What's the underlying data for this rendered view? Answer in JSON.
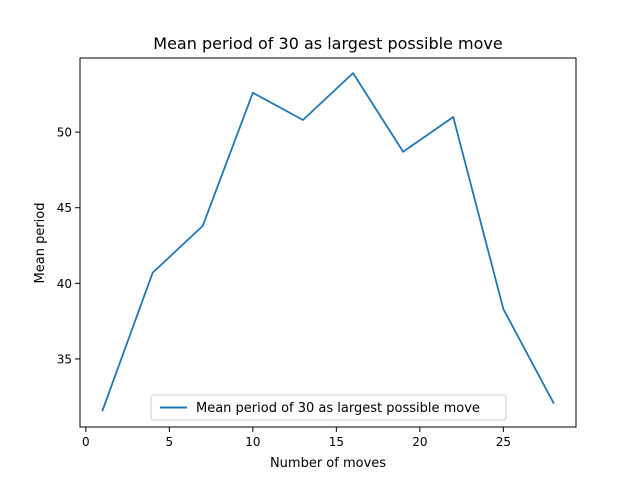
{
  "chart_data": {
    "type": "line",
    "title": "Mean period of 30 as largest possible move",
    "xlabel": "Number of moves",
    "ylabel": "Mean period",
    "xlim": [
      -0.35,
      29.35
    ],
    "ylim": [
      30.5,
      54.9
    ],
    "xticks": [
      0,
      5,
      10,
      15,
      20,
      25
    ],
    "yticks": [
      35,
      40,
      45,
      50
    ],
    "grid": false,
    "legend_position": "lower-center",
    "series": [
      {
        "name": "Mean period of 30 as largest possible move",
        "color": "#1f77b4",
        "x": [
          1,
          4,
          7,
          10,
          13,
          16,
          19,
          22,
          25,
          28
        ],
        "y": [
          31.6,
          40.7,
          43.8,
          52.6,
          50.8,
          53.9,
          48.7,
          51.0,
          38.3,
          32.1
        ]
      }
    ]
  }
}
